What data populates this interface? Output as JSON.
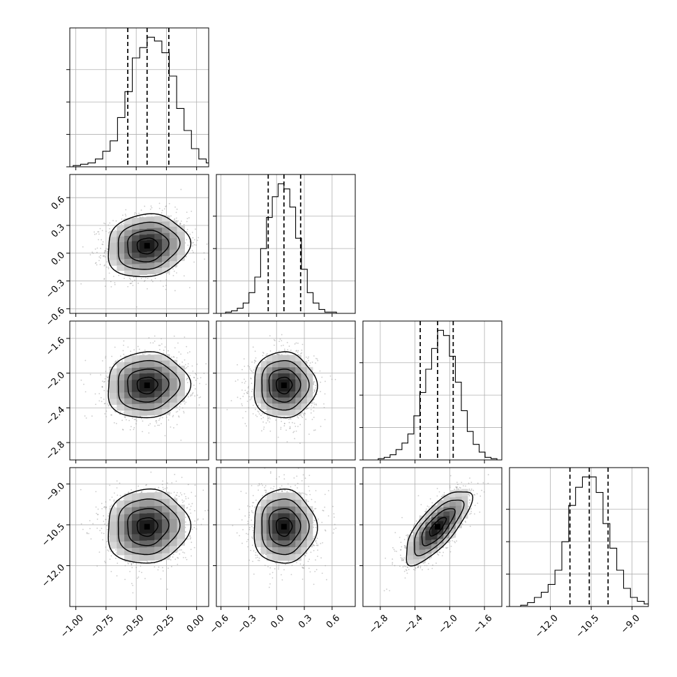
{
  "chart_data": {
    "type": "corner",
    "parameters": [
      {
        "name": "",
        "range": [
          -1.05,
          0.1
        ],
        "tick_values": [
          -1.0,
          -0.75,
          -0.5,
          -0.25,
          0.0
        ],
        "tick_labels": [
          "−1.00",
          "−0.75",
          "−0.50",
          "−0.25",
          "0.00"
        ],
        "quantiles": [
          -0.57,
          -0.41,
          -0.23
        ],
        "histogram": [
          1,
          2,
          3,
          6,
          12,
          20,
          38,
          58,
          84,
          92,
          100,
          97,
          88,
          70,
          45,
          28,
          14,
          6,
          3,
          1
        ]
      },
      {
        "name": "",
        "range": [
          -0.65,
          0.85
        ],
        "tick_values": [
          -0.6,
          -0.3,
          0.0,
          0.3,
          0.6
        ],
        "tick_labels": [
          "−0.6",
          "−0.3",
          "0.0",
          "0.3",
          "0.6"
        ],
        "quantiles": [
          -0.09,
          0.08,
          0.26
        ],
        "histogram": [
          1,
          2,
          4,
          8,
          16,
          28,
          50,
          74,
          90,
          100,
          96,
          82,
          58,
          34,
          16,
          8,
          3,
          1,
          1,
          0
        ]
      },
      {
        "name": "",
        "range": [
          -3.0,
          -1.4
        ],
        "tick_values": [
          -2.8,
          -2.4,
          -2.0,
          -1.6
        ],
        "tick_labels": [
          "−2.8",
          "−2.4",
          "−2.0",
          "−1.6"
        ],
        "quantiles": [
          -2.34,
          -2.14,
          -1.96
        ],
        "histogram": [
          1,
          2,
          4,
          8,
          13,
          20,
          34,
          52,
          70,
          86,
          100,
          96,
          80,
          60,
          38,
          22,
          12,
          6,
          2,
          1
        ]
      },
      {
        "name": "",
        "range": [
          -13.5,
          -8.4
        ],
        "tick_values": [
          -12.0,
          -10.5,
          -9.0
        ],
        "tick_labels": [
          "−12.0",
          "−10.5",
          "−9.0"
        ],
        "quantiles": [
          -11.28,
          -10.57,
          -9.88
        ],
        "histogram": [
          1,
          3,
          7,
          11,
          17,
          28,
          50,
          78,
          92,
          100,
          100,
          88,
          64,
          45,
          28,
          14,
          7,
          4,
          2,
          1
        ]
      }
    ],
    "pairs": [
      {
        "x": 0,
        "y": 1,
        "center": [
          -0.41,
          0.08
        ],
        "std": [
          0.17,
          0.17
        ],
        "correlation": 0.1
      },
      {
        "x": 0,
        "y": 2,
        "center": [
          -0.41,
          -2.14
        ],
        "std": [
          0.17,
          0.19
        ],
        "correlation": 0.05
      },
      {
        "x": 1,
        "y": 2,
        "center": [
          0.08,
          -2.14
        ],
        "std": [
          0.17,
          0.19
        ],
        "correlation": 0.0
      },
      {
        "x": 0,
        "y": 3,
        "center": [
          -0.41,
          -10.57
        ],
        "std": [
          0.17,
          0.68
        ],
        "correlation": 0.05
      },
      {
        "x": 1,
        "y": 3,
        "center": [
          0.08,
          -10.57
        ],
        "std": [
          0.17,
          0.68
        ],
        "correlation": 0.0
      },
      {
        "x": 2,
        "y": 3,
        "center": [
          -2.14,
          -10.57
        ],
        "std": [
          0.19,
          0.68
        ],
        "correlation": 0.75
      }
    ],
    "contour_levels_sigma": [
      0.5,
      1.0,
      1.5,
      2.0
    ],
    "grid": true,
    "quantile_line_style": "dashed",
    "xlabel": "",
    "ylabel": "",
    "title": ""
  }
}
